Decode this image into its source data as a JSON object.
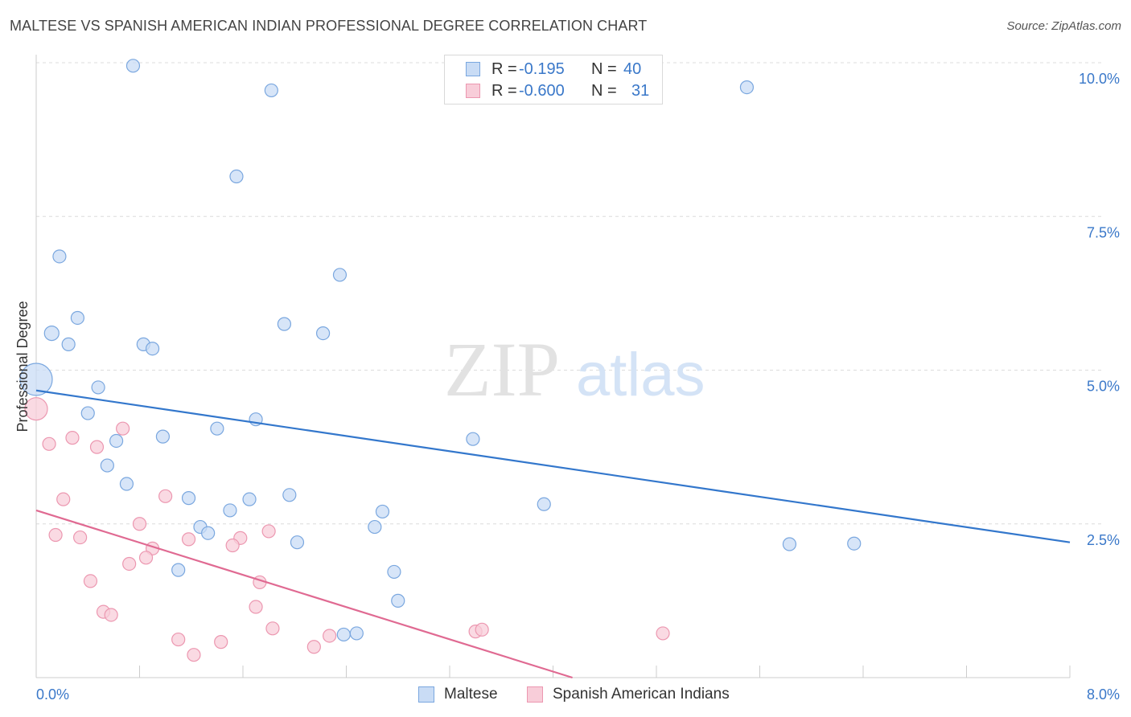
{
  "title": "MALTESE VS SPANISH AMERICAN INDIAN PROFESSIONAL DEGREE CORRELATION CHART",
  "source": "Source: ZipAtlas.com",
  "watermark": {
    "zip": "ZIP",
    "atlas": "atlas"
  },
  "colors": {
    "blue_fill": "#c9dcf5",
    "blue_stroke": "#7aa7df",
    "blue_line": "#3377cc",
    "pink_fill": "#f8cdd9",
    "pink_stroke": "#ec97b0",
    "pink_line": "#e06a92",
    "axis_text": "#3a78c9"
  },
  "legend_top": {
    "rows": [
      {
        "r_label": "R =",
        "r_value": "-0.195",
        "n_label": "N =",
        "n_value": "40"
      },
      {
        "r_label": "R =",
        "r_value": "-0.600",
        "n_label": "N =",
        "n_value": "31"
      }
    ]
  },
  "legend_bottom": [
    "Maltese",
    "Spanish American Indians"
  ],
  "chart_data": {
    "type": "scatter",
    "ylabel": "Professional Degree",
    "xlim": [
      0,
      8
    ],
    "ylim": [
      0,
      10
    ],
    "x_tick_labels": [
      "0.0%",
      "8.0%"
    ],
    "y_tick_labels": [
      "2.5%",
      "5.0%",
      "7.5%",
      "10.0%"
    ],
    "y_ticks": [
      2.5,
      5.0,
      7.5,
      10.0
    ],
    "grid": "horizontal dashed",
    "series": [
      {
        "name": "Maltese",
        "R": -0.195,
        "N": 40,
        "trend": [
          [
            0.0,
            4.67
          ],
          [
            8.0,
            2.2
          ]
        ],
        "points": [
          [
            0.0,
            4.85,
            20
          ],
          [
            0.75,
            9.95,
            8
          ],
          [
            1.82,
            9.55,
            8
          ],
          [
            5.5,
            9.6,
            8
          ],
          [
            1.55,
            8.15,
            8
          ],
          [
            0.18,
            6.85,
            8
          ],
          [
            2.35,
            6.55,
            8
          ],
          [
            0.32,
            5.85,
            8
          ],
          [
            0.12,
            5.6,
            9
          ],
          [
            0.25,
            5.42,
            8
          ],
          [
            1.92,
            5.75,
            8
          ],
          [
            2.22,
            5.6,
            8
          ],
          [
            0.83,
            5.42,
            8
          ],
          [
            0.9,
            5.35,
            8
          ],
          [
            0.48,
            4.72,
            8
          ],
          [
            0.4,
            4.3,
            8
          ],
          [
            1.7,
            4.2,
            8
          ],
          [
            1.4,
            4.05,
            8
          ],
          [
            0.98,
            3.92,
            8
          ],
          [
            0.62,
            3.85,
            8
          ],
          [
            3.38,
            3.88,
            8
          ],
          [
            0.55,
            3.45,
            8
          ],
          [
            0.7,
            3.15,
            8
          ],
          [
            1.18,
            2.92,
            8
          ],
          [
            1.65,
            2.9,
            8
          ],
          [
            1.96,
            2.97,
            8
          ],
          [
            1.5,
            2.72,
            8
          ],
          [
            2.68,
            2.7,
            8
          ],
          [
            3.93,
            2.82,
            8
          ],
          [
            1.27,
            2.45,
            8
          ],
          [
            1.33,
            2.35,
            8
          ],
          [
            2.02,
            2.2,
            8
          ],
          [
            2.62,
            2.45,
            8
          ],
          [
            5.83,
            2.17,
            8
          ],
          [
            6.33,
            2.18,
            8
          ],
          [
            1.1,
            1.75,
            8
          ],
          [
            2.77,
            1.72,
            8
          ],
          [
            2.8,
            1.25,
            8
          ],
          [
            2.38,
            0.7,
            8
          ],
          [
            2.48,
            0.72,
            8
          ]
        ]
      },
      {
        "name": "Spanish American Indians",
        "R": -0.6,
        "N": 31,
        "trend": [
          [
            0.0,
            2.72
          ],
          [
            4.15,
            0.0
          ]
        ],
        "points": [
          [
            0.0,
            4.37,
            14
          ],
          [
            0.1,
            3.8,
            8
          ],
          [
            0.28,
            3.9,
            8
          ],
          [
            0.47,
            3.75,
            8
          ],
          [
            0.67,
            4.05,
            8
          ],
          [
            0.21,
            2.9,
            8
          ],
          [
            1.0,
            2.95,
            8
          ],
          [
            0.8,
            2.5,
            8
          ],
          [
            1.8,
            2.38,
            8
          ],
          [
            0.15,
            2.32,
            8
          ],
          [
            0.34,
            2.28,
            8
          ],
          [
            1.18,
            2.25,
            8
          ],
          [
            1.58,
            2.27,
            8
          ],
          [
            1.52,
            2.15,
            8
          ],
          [
            0.9,
            2.1,
            8
          ],
          [
            0.85,
            1.95,
            8
          ],
          [
            0.72,
            1.85,
            8
          ],
          [
            0.42,
            1.57,
            8
          ],
          [
            1.73,
            1.55,
            8
          ],
          [
            1.7,
            1.15,
            8
          ],
          [
            0.52,
            1.07,
            8
          ],
          [
            0.58,
            1.02,
            8
          ],
          [
            1.83,
            0.8,
            8
          ],
          [
            1.1,
            0.62,
            8
          ],
          [
            1.43,
            0.58,
            8
          ],
          [
            2.27,
            0.68,
            8
          ],
          [
            2.15,
            0.5,
            8
          ],
          [
            1.22,
            0.37,
            8
          ],
          [
            3.4,
            0.75,
            8
          ],
          [
            3.45,
            0.78,
            8
          ],
          [
            4.85,
            0.72,
            8
          ]
        ]
      }
    ]
  }
}
